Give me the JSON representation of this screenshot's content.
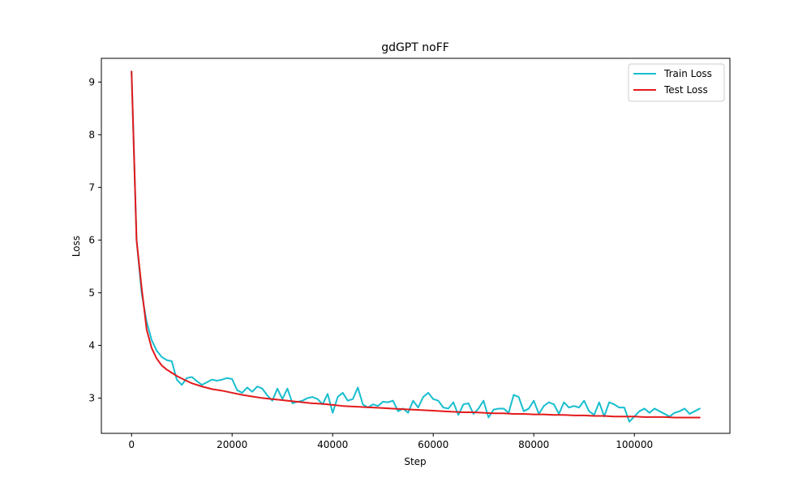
{
  "chart_data": {
    "type": "line",
    "title": "gdGPT noFF",
    "xlabel": "Step",
    "ylabel": "Loss",
    "xlim": [
      -6000,
      119000
    ],
    "ylim": [
      2.33,
      9.45
    ],
    "xticks": [
      0,
      20000,
      40000,
      60000,
      80000,
      100000
    ],
    "yticks": [
      3,
      4,
      5,
      6,
      7,
      8,
      9
    ],
    "grid": false,
    "legend_position": "top-right",
    "series": [
      {
        "name": "Train Loss",
        "color": "#17becf",
        "x": [
          0,
          1000,
          2000,
          3000,
          4000,
          5000,
          6000,
          7000,
          8000,
          9000,
          10000,
          11000,
          12000,
          13000,
          14000,
          15000,
          16000,
          17000,
          18000,
          19000,
          20000,
          21000,
          22000,
          23000,
          24000,
          25000,
          26000,
          27000,
          28000,
          29000,
          30000,
          31000,
          32000,
          33000,
          34000,
          35000,
          36000,
          37000,
          38000,
          39000,
          40000,
          41000,
          42000,
          43000,
          44000,
          45000,
          46000,
          47000,
          48000,
          49000,
          50000,
          51000,
          52000,
          53000,
          54000,
          55000,
          56000,
          57000,
          58000,
          59000,
          60000,
          61000,
          62000,
          63000,
          64000,
          65000,
          66000,
          67000,
          68000,
          69000,
          70000,
          71000,
          72000,
          73000,
          74000,
          75000,
          76000,
          77000,
          78000,
          79000,
          80000,
          81000,
          82000,
          83000,
          84000,
          85000,
          86000,
          87000,
          88000,
          89000,
          90000,
          91000,
          92000,
          93000,
          94000,
          95000,
          96000,
          97000,
          98000,
          99000,
          100000,
          101000,
          102000,
          103000,
          104000,
          105000,
          106000,
          107000,
          108000,
          109000,
          110000,
          111000,
          112000,
          113000
        ],
        "y": [
          9.2,
          6.0,
          5.0,
          4.45,
          4.1,
          3.9,
          3.78,
          3.72,
          3.7,
          3.35,
          3.25,
          3.38,
          3.4,
          3.32,
          3.25,
          3.3,
          3.35,
          3.33,
          3.35,
          3.38,
          3.36,
          3.15,
          3.1,
          3.2,
          3.12,
          3.22,
          3.18,
          3.05,
          2.95,
          3.18,
          2.98,
          3.18,
          2.9,
          2.93,
          2.95,
          3.0,
          3.02,
          2.98,
          2.88,
          3.08,
          2.72,
          3.02,
          3.1,
          2.95,
          2.98,
          3.2,
          2.88,
          2.82,
          2.88,
          2.85,
          2.93,
          2.92,
          2.95,
          2.75,
          2.8,
          2.72,
          2.95,
          2.82,
          3.02,
          3.1,
          2.98,
          2.95,
          2.82,
          2.8,
          2.92,
          2.68,
          2.88,
          2.9,
          2.7,
          2.8,
          2.95,
          2.63,
          2.78,
          2.8,
          2.8,
          2.72,
          3.06,
          3.02,
          2.75,
          2.8,
          2.95,
          2.7,
          2.85,
          2.92,
          2.88,
          2.7,
          2.92,
          2.82,
          2.85,
          2.82,
          2.95,
          2.75,
          2.68,
          2.92,
          2.65,
          2.92,
          2.88,
          2.82,
          2.82,
          2.55,
          2.65,
          2.75,
          2.8,
          2.72,
          2.8,
          2.75,
          2.7,
          2.65,
          2.72,
          2.75,
          2.8,
          2.7,
          2.75,
          2.8
        ]
      },
      {
        "name": "Test Loss",
        "color": "#e31a1c",
        "x": [
          0,
          1000,
          2000,
          3000,
          4000,
          5000,
          6000,
          7000,
          8000,
          9000,
          10000,
          12000,
          14000,
          16000,
          18000,
          20000,
          22000,
          24000,
          26000,
          28000,
          30000,
          32000,
          34000,
          36000,
          38000,
          40000,
          42000,
          44000,
          46000,
          48000,
          50000,
          52000,
          54000,
          56000,
          58000,
          60000,
          62000,
          64000,
          66000,
          68000,
          70000,
          72000,
          74000,
          76000,
          78000,
          80000,
          82000,
          84000,
          86000,
          88000,
          90000,
          92000,
          94000,
          96000,
          98000,
          100000,
          102000,
          104000,
          106000,
          108000,
          110000,
          113000
        ],
        "y": [
          9.2,
          6.0,
          5.1,
          4.3,
          3.95,
          3.75,
          3.62,
          3.54,
          3.48,
          3.42,
          3.37,
          3.28,
          3.22,
          3.17,
          3.14,
          3.1,
          3.06,
          3.03,
          3.0,
          2.98,
          2.96,
          2.94,
          2.92,
          2.9,
          2.89,
          2.87,
          2.85,
          2.84,
          2.83,
          2.82,
          2.81,
          2.8,
          2.79,
          2.78,
          2.77,
          2.76,
          2.75,
          2.74,
          2.73,
          2.73,
          2.72,
          2.71,
          2.71,
          2.7,
          2.7,
          2.69,
          2.69,
          2.68,
          2.68,
          2.67,
          2.67,
          2.66,
          2.66,
          2.65,
          2.65,
          2.65,
          2.64,
          2.64,
          2.64,
          2.63,
          2.63,
          2.63
        ]
      }
    ]
  }
}
